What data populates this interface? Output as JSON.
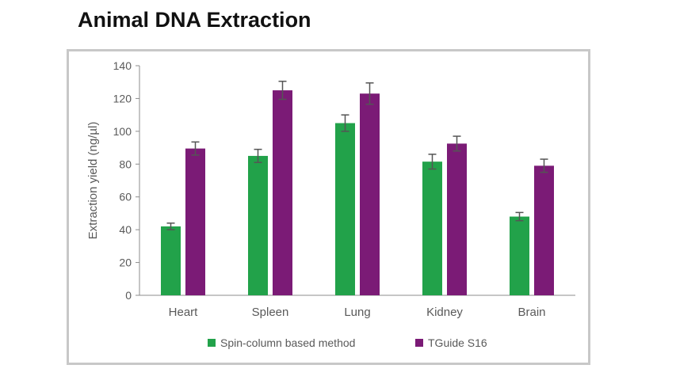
{
  "title": "Animal DNA Extraction",
  "chart_data": {
    "type": "bar",
    "categories": [
      "Heart",
      "Spleen",
      "Lung",
      "Kidney",
      "Brain"
    ],
    "series": [
      {
        "name": "Spin-column based method",
        "color": "#22a24a",
        "values": [
          42,
          85,
          105,
          81.5,
          48
        ],
        "errors": [
          2,
          4,
          5,
          4.5,
          2.5
        ]
      },
      {
        "name": "TGuide S16",
        "color": "#7b1b76",
        "values": [
          89.5,
          125,
          123,
          92.5,
          79
        ],
        "errors": [
          4,
          5.5,
          6.5,
          4.5,
          4
        ]
      }
    ],
    "xlabel": "",
    "ylabel": "Extraction yield (ng/µl)",
    "ylim": [
      0,
      140
    ],
    "yticks": [
      0,
      20,
      40,
      60,
      80,
      100,
      120,
      140
    ],
    "grid": false,
    "legend_position": "bottom"
  }
}
